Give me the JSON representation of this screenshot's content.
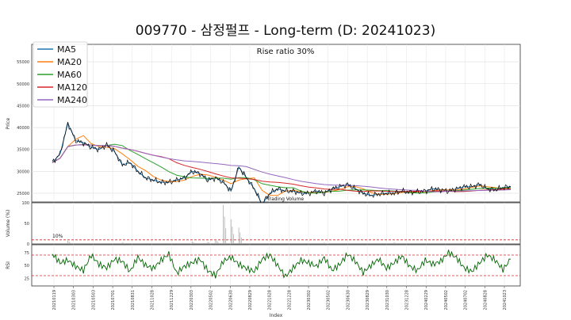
{
  "chart_data": {
    "type": "line",
    "title": "009770 - 삼정펄프 - Long-term (D: 20241023)",
    "annotation": "Rise ratio 30%",
    "xlabel": "Index",
    "x_tick_labels": [
      "20210119",
      "20210303",
      "20210503",
      "20210701",
      "20210831",
      "20211028",
      "20211229",
      "20220303",
      "20220502",
      "20220630",
      "20220829",
      "20221028",
      "20221228",
      "20230302",
      "20230502",
      "20230630",
      "20230829",
      "20231030",
      "20231228",
      "20240229",
      "20240502",
      "20240702",
      "20240828",
      "20241023"
    ],
    "price_panel": {
      "ylabel": "Price",
      "ylim": [
        23000,
        59000
      ],
      "y_ticks": [
        25000,
        30000,
        35000,
        40000,
        45000,
        50000,
        55000
      ],
      "inner_label": "Trading Volume",
      "close": [
        32000,
        34000,
        41000,
        37000,
        36500,
        35500,
        35000,
        36000,
        34500,
        31500,
        32000,
        30000,
        28500,
        28000,
        27500,
        27500,
        28000,
        28500,
        30000,
        29500,
        28000,
        28500,
        27500,
        25500,
        31000,
        28500,
        26000,
        22500,
        25000,
        26000,
        25500,
        25500,
        25000,
        25000,
        25500,
        25000,
        26000,
        26500,
        27000,
        26000,
        25000,
        24500,
        24800,
        25000,
        25000,
        25500,
        25200,
        25300,
        25500,
        26000,
        25800,
        25500,
        26000,
        26500,
        26500,
        27000,
        26000,
        25800,
        26300,
        26500
      ],
      "series": [
        {
          "name": "MA5",
          "color": "#1f77b4"
        },
        {
          "name": "MA20",
          "color": "#ff7f0e"
        },
        {
          "name": "MA60",
          "color": "#2ca02c"
        },
        {
          "name": "MA120",
          "color": "#d62728"
        },
        {
          "name": "MA240",
          "color": "#9467bd"
        }
      ],
      "legend_position": "top-left"
    },
    "volume_panel": {
      "ylabel": "Volume (%)",
      "ylim": [
        0,
        100
      ],
      "y_ticks": [
        0,
        50,
        100
      ],
      "threshold_label": "10%",
      "threshold": 10,
      "spikes": [
        {
          "i": 2,
          "v": 8
        },
        {
          "i": 9,
          "v": 4
        },
        {
          "i": 18,
          "v": 6
        },
        {
          "i": 20,
          "v": 5
        },
        {
          "i": 21,
          "v": 12
        },
        {
          "i": 22,
          "v": 95
        },
        {
          "i": 23,
          "v": 60
        },
        {
          "i": 24,
          "v": 40
        },
        {
          "i": 35,
          "v": 3
        },
        {
          "i": 44,
          "v": 4
        },
        {
          "i": 53,
          "v": 3
        }
      ]
    },
    "rsi_panel": {
      "ylabel": "RSI",
      "ylim": [
        10,
        90
      ],
      "y_ticks": [
        25,
        50,
        75
      ],
      "overbought": 70,
      "oversold": 30,
      "values": [
        72,
        55,
        60,
        48,
        40,
        70,
        52,
        45,
        62,
        58,
        38,
        66,
        50,
        44,
        60,
        72,
        35,
        48,
        55,
        62,
        40,
        30,
        58,
        66,
        52,
        44,
        38,
        62,
        70,
        50,
        28,
        45,
        60,
        55,
        48,
        65,
        40,
        52,
        72,
        58,
        36,
        50,
        62,
        44,
        55,
        68,
        48,
        40,
        60,
        52,
        58,
        75,
        65,
        45,
        38,
        55,
        70,
        60,
        42,
        62
      ]
    }
  }
}
